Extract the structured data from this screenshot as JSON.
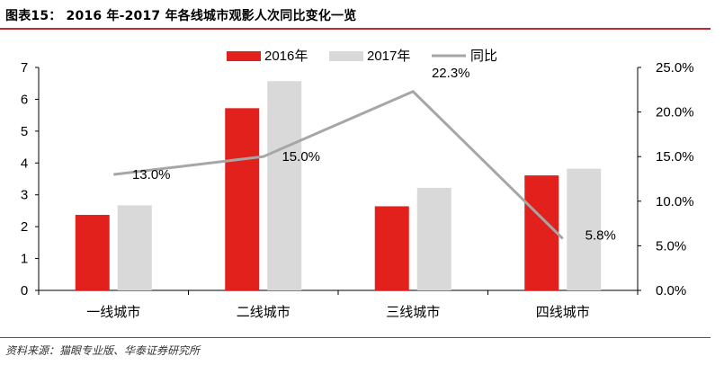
{
  "figure_title": "图表15： 2016 年-2017 年各线城市观影人次同比变化一览",
  "source": "资料来源：猫眼专业版、华泰证券研究所",
  "colors": {
    "series_2016": "#e2211c",
    "series_2017": "#d9d9d9",
    "series_yoy": "#a6a6a6",
    "accent_rule": "#c0262b"
  },
  "chart_data": {
    "type": "bar",
    "categories": [
      "一线城市",
      "二线城市",
      "三线城市",
      "四线城市"
    ],
    "series": [
      {
        "name": "2016年",
        "type": "bar",
        "axis": "left",
        "values": [
          2.37,
          5.72,
          2.64,
          3.61
        ]
      },
      {
        "name": "2017年",
        "type": "bar",
        "axis": "left",
        "values": [
          2.67,
          6.57,
          3.22,
          3.82
        ]
      },
      {
        "name": "同比",
        "type": "line",
        "axis": "right",
        "values": [
          13.0,
          15.0,
          22.3,
          5.8
        ],
        "labels": [
          "13.0%",
          "15.0%",
          "22.3%",
          "5.8%"
        ]
      }
    ],
    "ylim": [
      0,
      7
    ],
    "yticks": [
      "0",
      "1",
      "2",
      "3",
      "4",
      "5",
      "6",
      "7"
    ],
    "y2lim": [
      0,
      25
    ],
    "y2ticks": [
      "0.0%",
      "5.0%",
      "10.0%",
      "15.0%",
      "20.0%",
      "25.0%"
    ],
    "legend_position": "top-center",
    "grid": false
  }
}
